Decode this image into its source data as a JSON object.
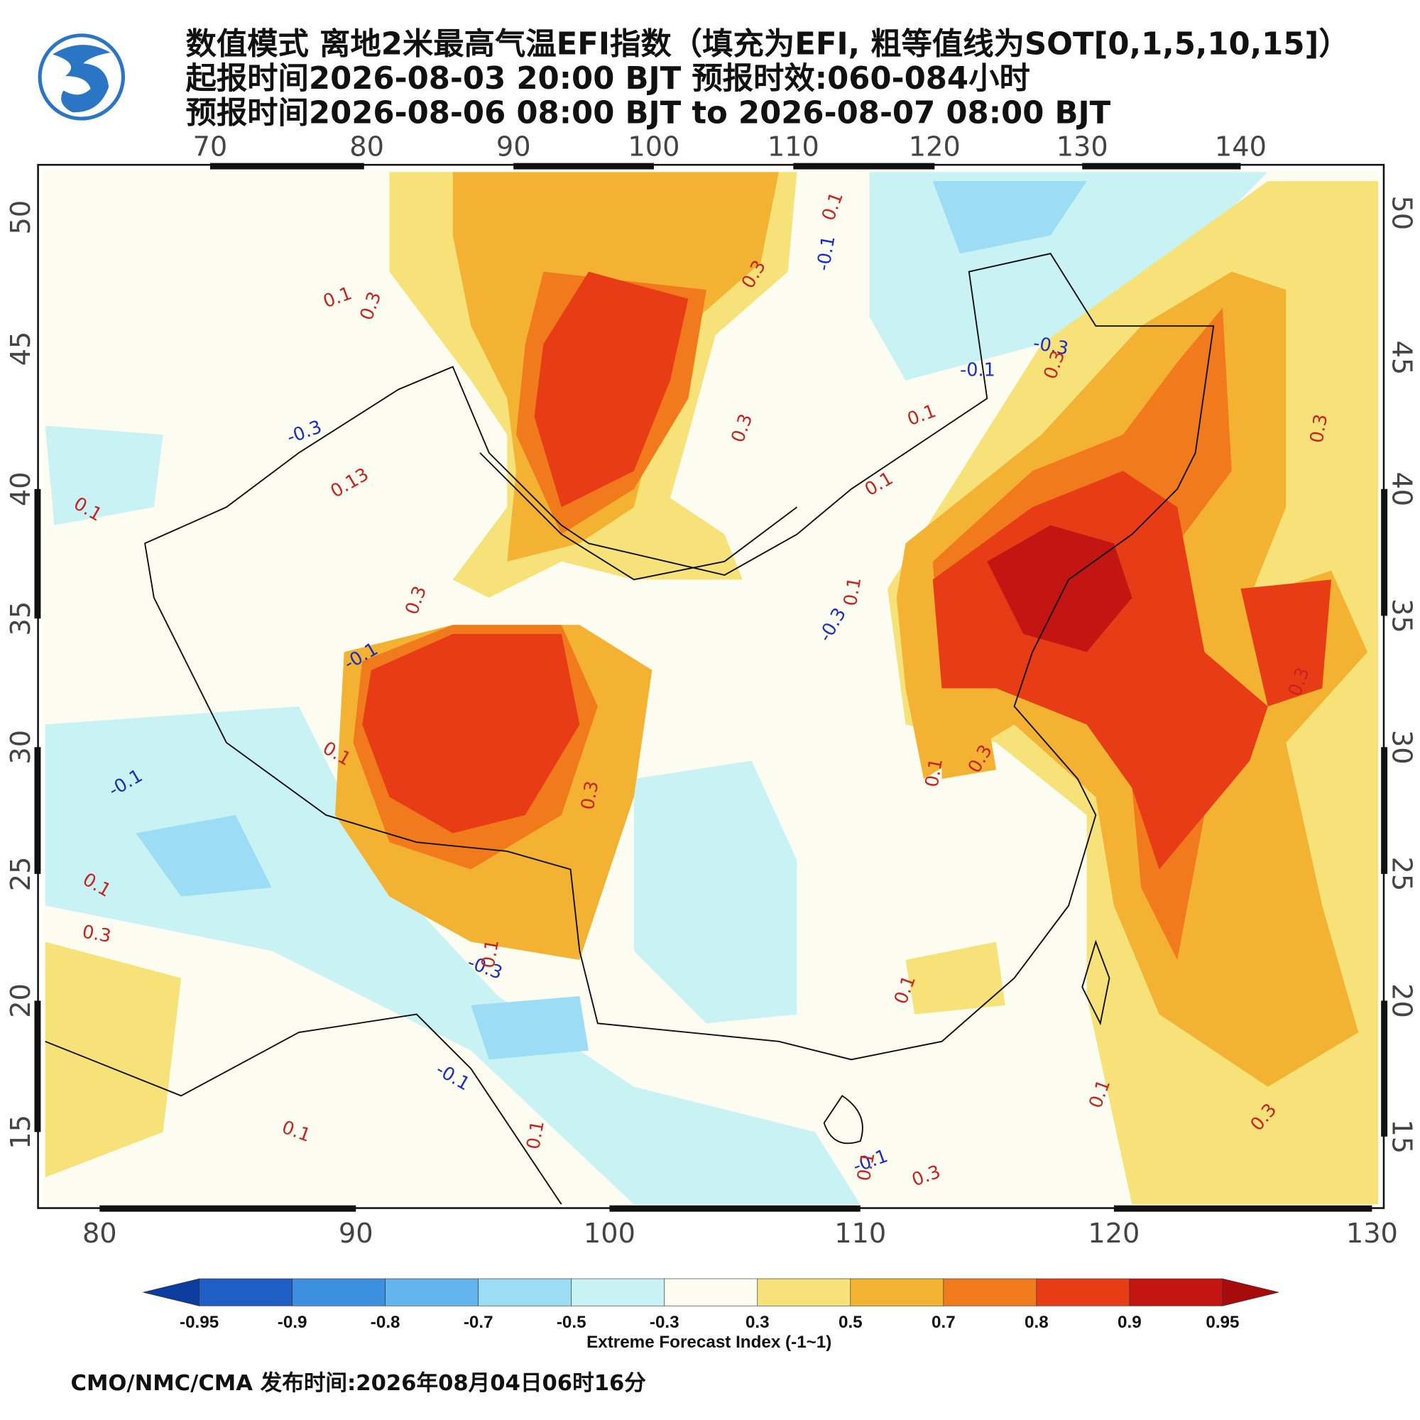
{
  "header": {
    "title": "数值模式 离地2米最高气温EFI指数（填充为EFI, 粗等值线为SOT[0,1,5,10,15]）",
    "init_time": "起报时间2026-08-03 20:00 BJT 预报时效:060-084小时",
    "valid_time": "预报时间2026-08-06 08:00 BJT to 2026-08-07 08:00 BJT"
  },
  "map": {
    "top_lon_labels": [
      70,
      80,
      90,
      100,
      110,
      120,
      130,
      140
    ],
    "bottom_lon_labels": [
      80,
      90,
      100,
      110,
      120,
      130
    ],
    "left_lat_labels": [
      50,
      45,
      40,
      35,
      30,
      25,
      20,
      15
    ],
    "right_lat_labels": [
      50,
      45,
      40,
      35,
      30,
      25,
      20,
      15
    ],
    "contour_labels": [
      "0.1",
      "0.3",
      "-0.3",
      "0.13",
      "0.1",
      "0.3",
      "-0.1",
      "0.1",
      "-0.1",
      "0.1",
      "0.3",
      "-0.3",
      "0.1",
      "-0.1",
      "0.1",
      "0.1",
      "0.3",
      "0.3",
      "-0.1",
      "0.1",
      "-0.3",
      "-0.1",
      "0.3",
      "0.1",
      "0.1",
      "0.3",
      "-0.3",
      "0.1",
      "0.3",
      "0.1",
      "0.3",
      "0.1",
      "0.1",
      "0.3",
      "-0.1",
      "0.1",
      "0.3",
      "0.3"
    ]
  },
  "colorbar": {
    "bounds": [
      {
        "value": -0.95,
        "label": "-0.95"
      },
      {
        "value": -0.9,
        "label": "-0.9"
      },
      {
        "value": -0.8,
        "label": "-0.8"
      },
      {
        "value": -0.7,
        "label": "-0.7"
      },
      {
        "value": -0.5,
        "label": "-0.5"
      },
      {
        "value": -0.3,
        "label": "-0.3"
      },
      0.3,
      0.5,
      0.7,
      0.8,
      0.9,
      0.95
    ],
    "colors": [
      "#0b3d9e",
      "#1f5fc4",
      "#3d8fe0",
      "#62b4ef",
      "#9cdcf5",
      "#c9f2f5",
      "#fdfcf1",
      "#f7e27a",
      "#f4b233",
      "#f07a1c",
      "#e73c16",
      "#c31512",
      "#a80b0b"
    ],
    "title": "Extreme Forecast Index (-1~1)"
  },
  "footer": {
    "text": "CMO/NMC/CMA 发布时间:2026年08月04日06时16分"
  }
}
